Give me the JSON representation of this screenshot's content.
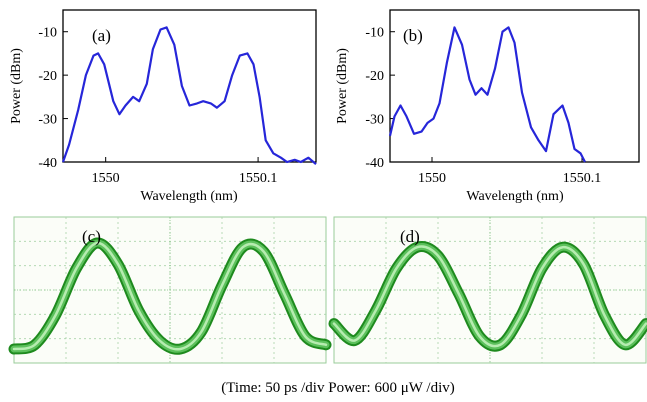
{
  "chart_data": [
    {
      "type": "line",
      "label": "(a)",
      "xlabel": "Wavelength (nm)",
      "ylabel": "Power (dBm)",
      "ylim": [
        -40,
        -5
      ],
      "xlim": [
        1549.972,
        1550.138
      ],
      "xticks": [
        1550,
        1550.1
      ],
      "xtick_labels": [
        "1550",
        "1550.1"
      ],
      "yticks": [
        -10,
        -20,
        -30,
        -40
      ],
      "ytick_labels": [
        "-10",
        "-20",
        "-30",
        "-40"
      ],
      "color": "#2626d9",
      "x": [
        1549.972,
        1549.976,
        1549.982,
        1549.987,
        1549.992,
        1549.995,
        1549.999,
        1550.005,
        1550.009,
        1550.013,
        1550.018,
        1550.022,
        1550.027,
        1550.031,
        1550.036,
        1550.04,
        1550.045,
        1550.05,
        1550.055,
        1550.06,
        1550.064,
        1550.069,
        1550.073,
        1550.078,
        1550.083,
        1550.088,
        1550.093,
        1550.097,
        1550.101,
        1550.105,
        1550.11,
        1550.115,
        1550.119,
        1550.124,
        1550.128,
        1550.133,
        1550.138
      ],
      "values": [
        -40,
        -36,
        -28,
        -20,
        -15.5,
        -15,
        -17.5,
        -26,
        -29,
        -27,
        -25,
        -26,
        -22,
        -14,
        -9.5,
        -9,
        -13,
        -22.5,
        -27,
        -26.5,
        -26,
        -26.5,
        -27.5,
        -26,
        -20,
        -15.5,
        -15,
        -17.5,
        -25,
        -35,
        -38,
        -39,
        -40,
        -39.5,
        -40,
        -39,
        -40.5
      ]
    },
    {
      "type": "line",
      "label": "(b)",
      "xlabel": "Wavelength (nm)",
      "ylabel": "Power (dBm)",
      "ylim": [
        -40,
        -5
      ],
      "xlim": [
        1549.972,
        1550.138
      ],
      "xticks": [
        1550,
        1550.1
      ],
      "xtick_labels": [
        "1550",
        "1550.1"
      ],
      "yticks": [
        -10,
        -20,
        -30,
        -40
      ],
      "ytick_labels": [
        "-10",
        "-20",
        "-30",
        "-40"
      ],
      "color": "#2626d9",
      "x": [
        1549.972,
        1549.975,
        1549.979,
        1549.983,
        1549.988,
        1549.993,
        1549.997,
        1550.001,
        1550.005,
        1550.01,
        1550.015,
        1550.02,
        1550.025,
        1550.029,
        1550.033,
        1550.037,
        1550.042,
        1550.047,
        1550.051,
        1550.055,
        1550.06,
        1550.066,
        1550.071,
        1550.076,
        1550.081,
        1550.087,
        1550.091,
        1550.095,
        1550.099,
        1550.102
      ],
      "values": [
        -34,
        -29.5,
        -27,
        -29.5,
        -33.5,
        -33,
        -31,
        -30,
        -26.5,
        -17,
        -9,
        -13,
        -21,
        -24.5,
        -23,
        -24.5,
        -18.5,
        -10,
        -9,
        -12.5,
        -24,
        -32,
        -35,
        -37.5,
        -29,
        -27,
        -31,
        -37,
        -38,
        -40
      ]
    },
    {
      "type": "line",
      "label": "(c)",
      "caption": "(Time: 50 ps /div    Power: 600 μW /div)",
      "color": "#1e8a1e",
      "grid": true,
      "x_div": [
        0,
        0.4,
        0.8,
        1.2,
        1.6,
        2.0,
        2.4,
        2.8,
        3.2,
        3.6,
        4.0,
        4.4,
        4.8,
        5.2,
        5.6,
        6.0
      ],
      "values": [
        0.0,
        0.1,
        0.8,
        1.9,
        2.5,
        2.0,
        0.9,
        0.2,
        0.0,
        0.4,
        1.5,
        2.4,
        2.3,
        1.3,
        0.3,
        0.1
      ]
    },
    {
      "type": "line",
      "label": "(d)",
      "caption": "(Time: 50 ps /div    Power: 600 μW /div)",
      "color": "#1e8a1e",
      "grid": true,
      "x_div": [
        0,
        0.4,
        0.8,
        1.2,
        1.6,
        2.0,
        2.4,
        2.8,
        3.2,
        3.6,
        4.0,
        4.4,
        4.8,
        5.2,
        5.6,
        6.0
      ],
      "values": [
        0.6,
        0.2,
        0.9,
        1.9,
        2.4,
        2.2,
        1.3,
        0.3,
        0.1,
        0.8,
        1.9,
        2.4,
        2.0,
        0.8,
        0.1,
        0.6
      ]
    }
  ],
  "panels": {
    "a": "(a)",
    "b": "(b)",
    "c": "(c)",
    "d": "(d)"
  },
  "caption": "(Time: 50 ps /div    Power: 600 μW /div)"
}
